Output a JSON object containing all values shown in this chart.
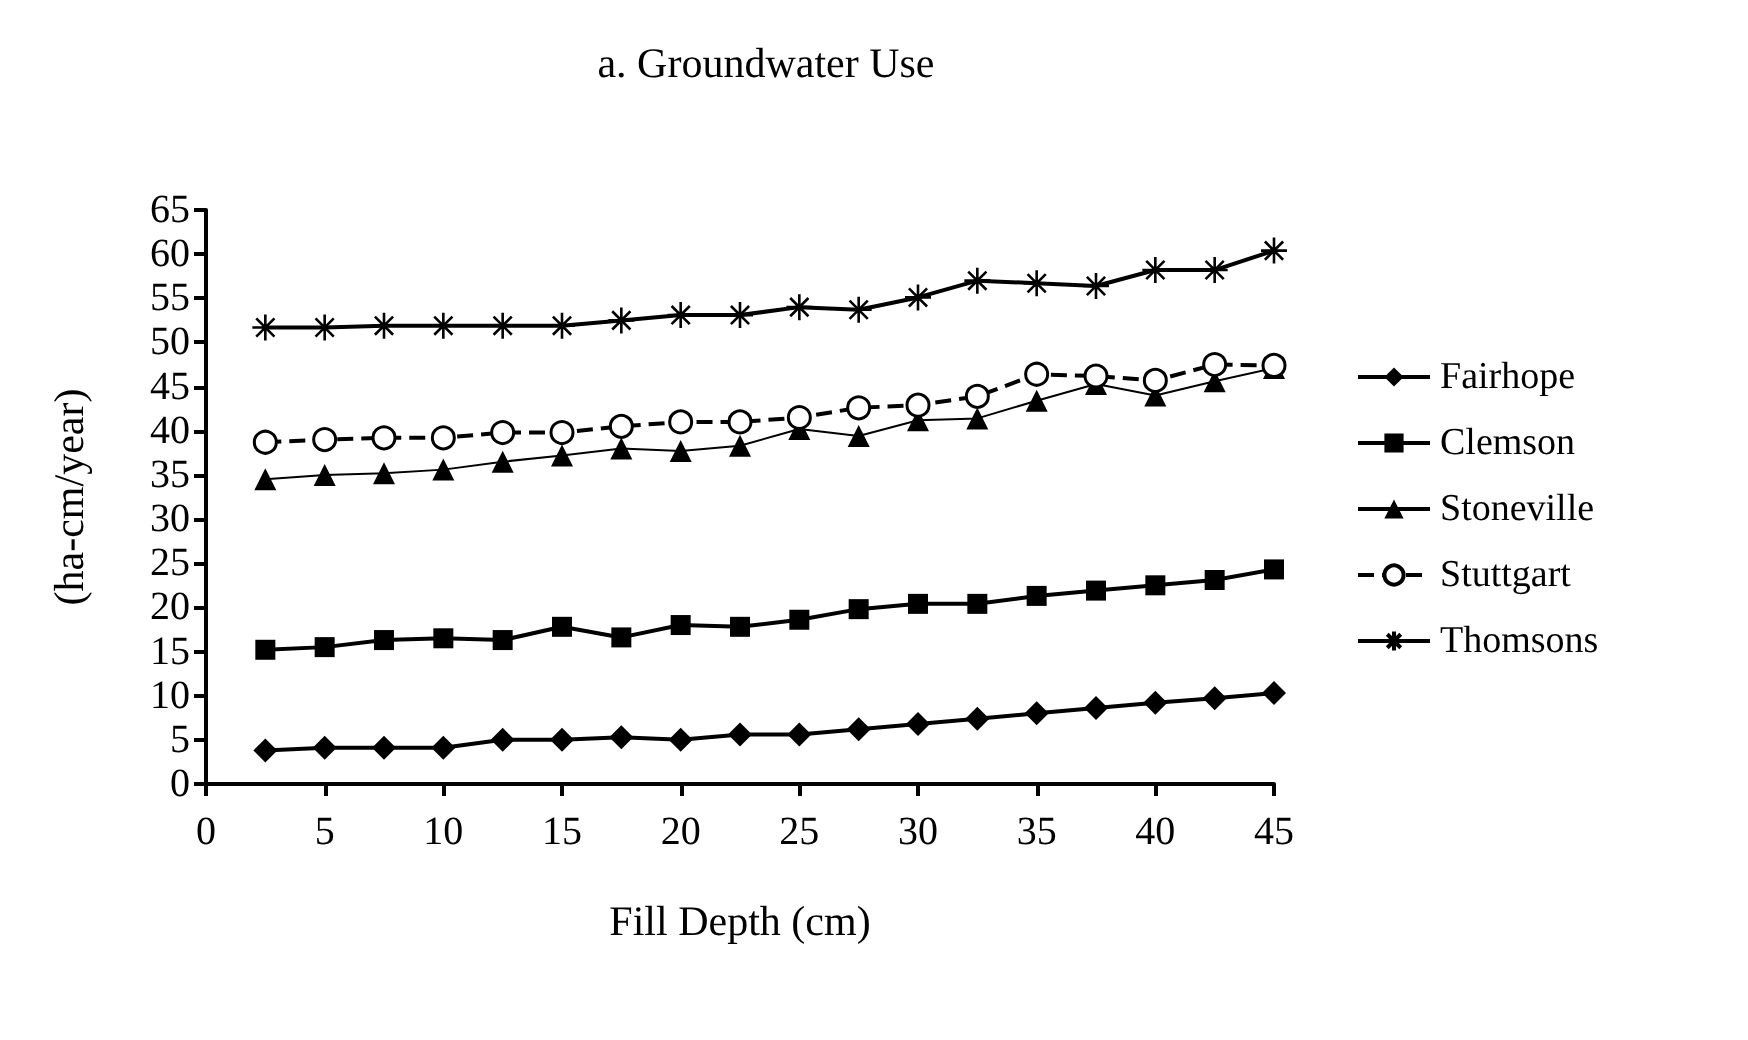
{
  "chart_data": {
    "type": "line",
    "title": "a. Groundwater Use",
    "xlabel": "Fill Depth (cm)",
    "ylabel": "(ha-cm/year)",
    "x": [
      2.5,
      5,
      7.5,
      10,
      12.5,
      15,
      17.5,
      20,
      22.5,
      25,
      27.5,
      30,
      32.5,
      35,
      37.5,
      40,
      42.5,
      45
    ],
    "xlim": [
      0,
      45
    ],
    "xticks": [
      0,
      5,
      10,
      15,
      20,
      25,
      30,
      35,
      40,
      45
    ],
    "ylim": [
      0,
      65
    ],
    "yticks": [
      0,
      5,
      10,
      15,
      20,
      25,
      30,
      35,
      40,
      45,
      50,
      55,
      60,
      65
    ],
    "grid": false,
    "legend": "right",
    "series": [
      {
        "name": "Fairhope",
        "color": "#000000",
        "marker": "diamond",
        "line_style": "solid",
        "values": [
          3.8,
          4.1,
          4.1,
          4.1,
          5,
          5,
          5.3,
          5,
          5.6,
          5.6,
          6.2,
          6.8,
          7.4,
          8,
          8.6,
          9.2,
          9.7,
          10.3
        ]
      },
      {
        "name": "Clemson",
        "color": "#000000",
        "marker": "square",
        "line_style": "solid",
        "values": [
          15.2,
          15.5,
          16.3,
          16.5,
          16.3,
          17.8,
          16.6,
          18,
          17.8,
          18.6,
          19.8,
          20.4,
          20.4,
          21.3,
          21.9,
          22.5,
          23.1,
          24.3
        ]
      },
      {
        "name": "Stoneville",
        "color": "#000000",
        "marker": "triangle",
        "line_style": "solid",
        "values": [
          34.5,
          35,
          35.2,
          35.6,
          36.5,
          37.2,
          38,
          37.7,
          38.3,
          40.2,
          39.4,
          41.2,
          41.4,
          43.4,
          45.3,
          44,
          45.6,
          47.1
        ]
      },
      {
        "name": "Stuttgart",
        "color": "#000000",
        "marker": "circle",
        "line_style": "dashed",
        "values": [
          38.7,
          39,
          39.2,
          39.2,
          39.8,
          39.8,
          40.5,
          41,
          41,
          41.5,
          42.6,
          42.9,
          43.9,
          46.4,
          46.2,
          45.7,
          47.5,
          47.4
        ]
      },
      {
        "name": "Thomsons",
        "color": "#000000",
        "marker": "cross",
        "line_style": "solid",
        "values": [
          51.7,
          51.7,
          51.9,
          51.9,
          51.9,
          51.9,
          52.5,
          53.1,
          53.1,
          54,
          53.7,
          55.1,
          57,
          56.7,
          56.4,
          58.2,
          58.2,
          60.4
        ]
      }
    ]
  }
}
